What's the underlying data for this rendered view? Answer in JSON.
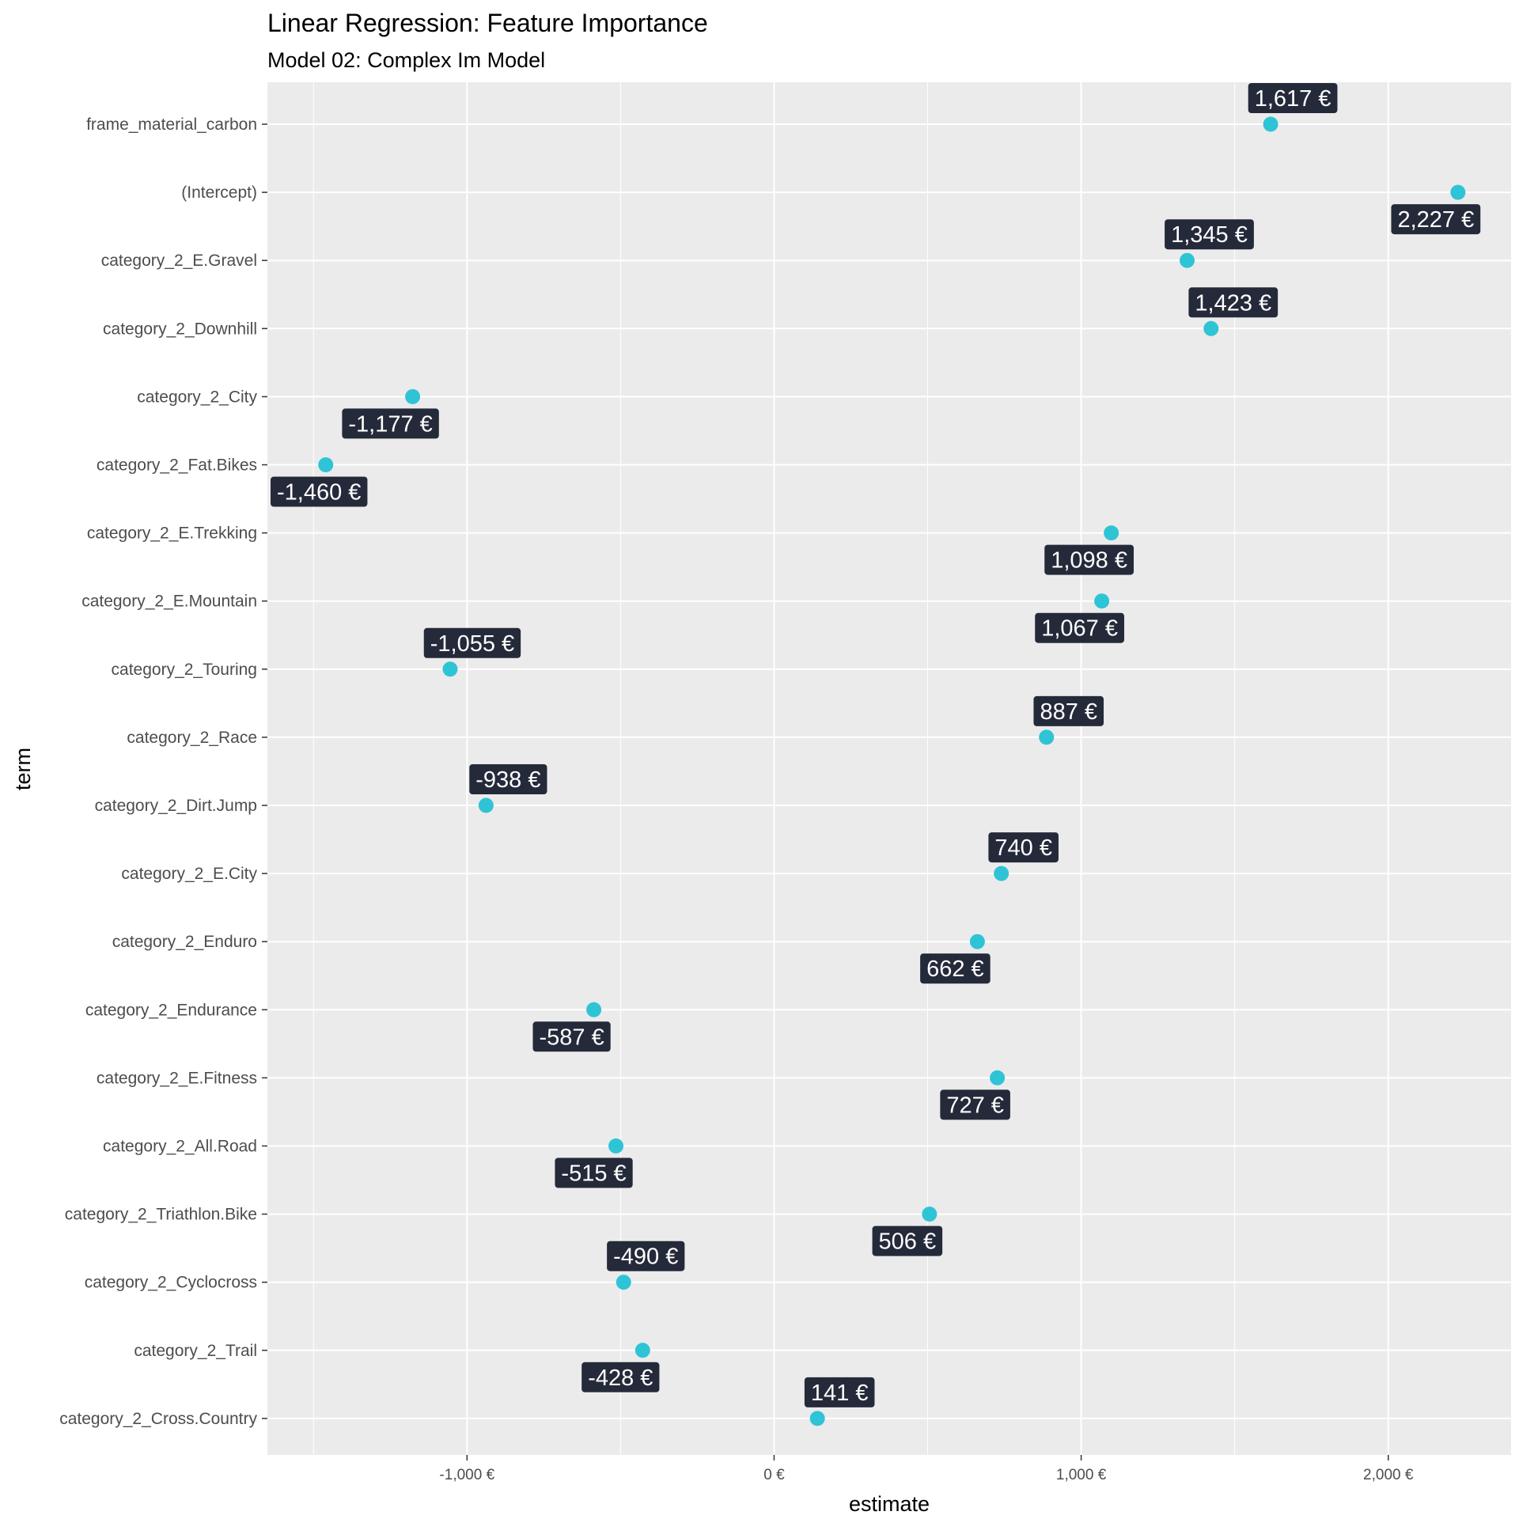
{
  "chart_data": {
    "type": "scatter",
    "title": "Linear Regression: Feature Importance",
    "subtitle": "Model 02: Complex Im Model",
    "xlabel": "estimate",
    "ylabel": "term",
    "xlim": [
      -1650,
      2400
    ],
    "x_ticks": [
      -1000,
      0,
      1000,
      2000
    ],
    "x_tick_labels": [
      "-1,000 €",
      "0 €",
      "1,000 €",
      "2,000 €"
    ],
    "grid": true,
    "legend": "none",
    "colors": {
      "point": "#2ec4d6",
      "label_bg": "#252a3a",
      "label_text": "#ffffff",
      "panel": "#ebebeb",
      "grid": "#ffffff"
    },
    "points": [
      {
        "term": "frame_material_carbon",
        "estimate": 1617,
        "label": "1,617 €",
        "label_pos": "above"
      },
      {
        "term": "(Intercept)",
        "estimate": 2227,
        "label": "2,227 €",
        "label_pos": "below"
      },
      {
        "term": "category_2_E.Gravel",
        "estimate": 1345,
        "label": "1,345 €",
        "label_pos": "above"
      },
      {
        "term": "category_2_Downhill",
        "estimate": 1423,
        "label": "1,423 €",
        "label_pos": "above"
      },
      {
        "term": "category_2_City",
        "estimate": -1177,
        "label": "-1,177 €",
        "label_pos": "below"
      },
      {
        "term": "category_2_Fat.Bikes",
        "estimate": -1460,
        "label": "-1,460 €",
        "label_pos": "below"
      },
      {
        "term": "category_2_E.Trekking",
        "estimate": 1098,
        "label": "1,098 €",
        "label_pos": "below"
      },
      {
        "term": "category_2_E.Mountain",
        "estimate": 1067,
        "label": "1,067 €",
        "label_pos": "below"
      },
      {
        "term": "category_2_Touring",
        "estimate": -1055,
        "label": "-1,055 €",
        "label_pos": "above"
      },
      {
        "term": "category_2_Race",
        "estimate": 887,
        "label": "887 €",
        "label_pos": "above"
      },
      {
        "term": "category_2_Dirt.Jump",
        "estimate": -938,
        "label": "-938 €",
        "label_pos": "above"
      },
      {
        "term": "category_2_E.City",
        "estimate": 740,
        "label": "740 €",
        "label_pos": "above"
      },
      {
        "term": "category_2_Enduro",
        "estimate": 662,
        "label": "662 €",
        "label_pos": "below"
      },
      {
        "term": "category_2_Endurance",
        "estimate": -587,
        "label": "-587 €",
        "label_pos": "below"
      },
      {
        "term": "category_2_E.Fitness",
        "estimate": 727,
        "label": "727 €",
        "label_pos": "below"
      },
      {
        "term": "category_2_All.Road",
        "estimate": -515,
        "label": "-515 €",
        "label_pos": "below"
      },
      {
        "term": "category_2_Triathlon.Bike",
        "estimate": 506,
        "label": "506 €",
        "label_pos": "below"
      },
      {
        "term": "category_2_Cyclocross",
        "estimate": -490,
        "label": "-490 €",
        "label_pos": "above"
      },
      {
        "term": "category_2_Trail",
        "estimate": -428,
        "label": "-428 €",
        "label_pos": "below"
      },
      {
        "term": "category_2_Cross.Country",
        "estimate": 141,
        "label": "141 €",
        "label_pos": "above"
      }
    ]
  }
}
